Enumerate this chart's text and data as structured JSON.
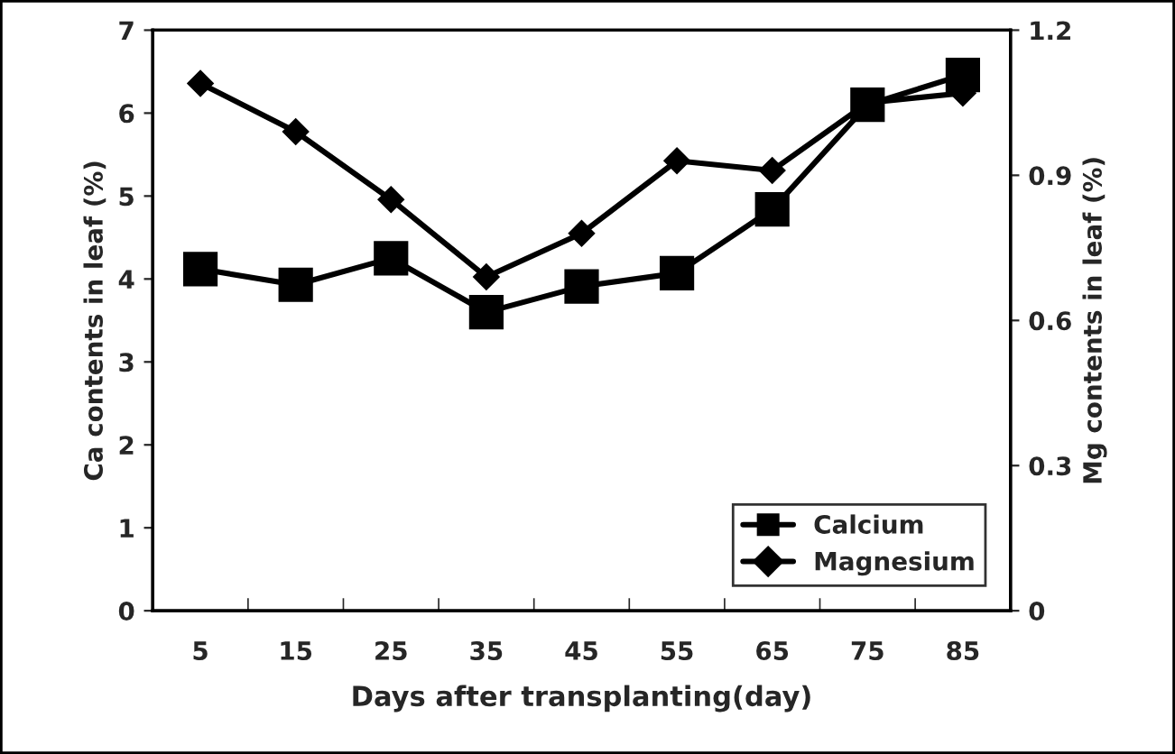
{
  "chart_data": {
    "type": "line",
    "categories": [
      "5",
      "15",
      "25",
      "35",
      "45",
      "55",
      "65",
      "75",
      "85"
    ],
    "xlabel": "Days after transplanting(day)",
    "ylabel": "Ca contents in leaf (%)",
    "y2label": "Mg contents in leaf (%)",
    "ylim": [
      0,
      7
    ],
    "yticks": [
      0,
      1,
      2,
      3,
      4,
      5,
      6,
      7
    ],
    "y2lim": [
      0,
      1.2
    ],
    "y2ticks": [
      0,
      0.3,
      0.6,
      0.9,
      1.2
    ],
    "legend": "bottom right",
    "grid": false,
    "series": [
      {
        "name": "Calcium",
        "color": "#000000",
        "marker": "square",
        "values": [
          4.12,
          3.93,
          4.25,
          3.6,
          3.91,
          4.07,
          4.84,
          6.1,
          6.46
        ]
      },
      {
        "name": "Magnesium",
        "color": "#000000",
        "marker": "diamond",
        "axis": "y2",
        "values": [
          1.09,
          0.99,
          0.85,
          0.69,
          0.78,
          0.93,
          0.91,
          1.05,
          1.07
        ]
      }
    ]
  }
}
